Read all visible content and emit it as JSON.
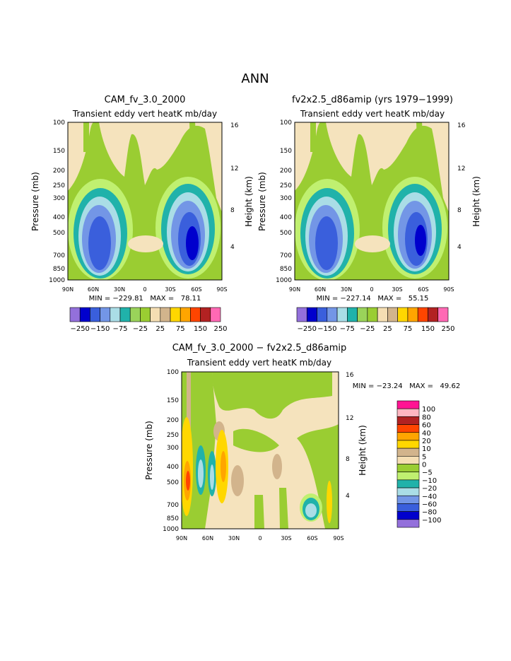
{
  "page_title": "ANN",
  "colors": {
    "bg": "#f5e3bd",
    "palette12": [
      "#9370db",
      "#0000cd",
      "#3a5fdc",
      "#7396e6",
      "#aadde6",
      "#20b2aa",
      "#9ad35a",
      "#9acd32",
      "#f5deb3",
      "#d2b48c",
      "#ffd700",
      "#ffa500",
      "#ff4500",
      "#b22222",
      "#ff69b4",
      "#ff1493"
    ],
    "diff_palette": [
      "#9370db",
      "#0000cd",
      "#3a5fdc",
      "#7396e6",
      "#aadde6",
      "#20b2aa",
      "#c0f070",
      "#9acd32",
      "#f5deb3",
      "#d2b48c",
      "#ffd700",
      "#ffa500",
      "#ff4500",
      "#b22222",
      "#ffb6c1",
      "#ff1493"
    ]
  },
  "chart_data": [
    {
      "type": "contour",
      "title": "CAM_fv_3.0_2000",
      "subtitle": "Transient eddy vert heatK mb/day",
      "ylabel": "Pressure (mb)",
      "y2label": "Height (km)",
      "x_ticks": [
        "90N",
        "60N",
        "30N",
        "0",
        "30S",
        "60S",
        "90S"
      ],
      "y_ticks": [
        "100",
        "150",
        "200",
        "250",
        "300",
        "400",
        "500",
        "700",
        "850",
        "1000"
      ],
      "y2_ticks": [
        "16",
        "12",
        "8",
        "4"
      ],
      "min_max": "MIN = −229.81   MAX =   78.11",
      "min": -229.81,
      "max": 78.11,
      "colorbar_labels": [
        "−250",
        "−150",
        "−75",
        "−25",
        "25",
        "75",
        "150",
        "250"
      ],
      "colorbar_levels": 15
    },
    {
      "type": "contour",
      "title": "fv2x2.5_d86amip (yrs 1979−1999)",
      "subtitle": "Transient eddy vert heatK mb/day",
      "ylabel": "Pressure (mb)",
      "y2label": "Height (km)",
      "x_ticks": [
        "90N",
        "60N",
        "30N",
        "0",
        "30S",
        "60S",
        "90S"
      ],
      "y_ticks": [
        "100",
        "150",
        "200",
        "250",
        "300",
        "400",
        "500",
        "700",
        "850",
        "1000"
      ],
      "y2_ticks": [
        "16",
        "12",
        "8",
        "4"
      ],
      "min_max": "MIN = −227.14   MAX =   55.15",
      "min": -227.14,
      "max": 55.15,
      "colorbar_labels": [
        "−250",
        "−150",
        "−75",
        "−25",
        "25",
        "75",
        "150",
        "250"
      ],
      "colorbar_levels": 15
    },
    {
      "type": "contour",
      "title": "CAM_fv_3.0_2000 − fv2x2.5_d86amip",
      "subtitle": "Transient eddy vert heatK mb/day",
      "ylabel": "Pressure (mb)",
      "y2label": "Height (km)",
      "x_ticks": [
        "90N",
        "60N",
        "30N",
        "0",
        "30S",
        "60S",
        "90S"
      ],
      "y_ticks": [
        "100",
        "150",
        "200",
        "250",
        "300",
        "400",
        "500",
        "700",
        "850",
        "1000"
      ],
      "y2_ticks": [
        "16",
        "12",
        "8",
        "4"
      ],
      "min_max": "MIN = −23.24   MAX =   49.62",
      "min": -23.24,
      "max": 49.62,
      "colorbar_labels": [
        "100",
        "80",
        "60",
        "40",
        "20",
        "10",
        "5",
        "0",
        "−5",
        "−10",
        "−20",
        "−40",
        "−60",
        "−80",
        "−100"
      ]
    }
  ]
}
